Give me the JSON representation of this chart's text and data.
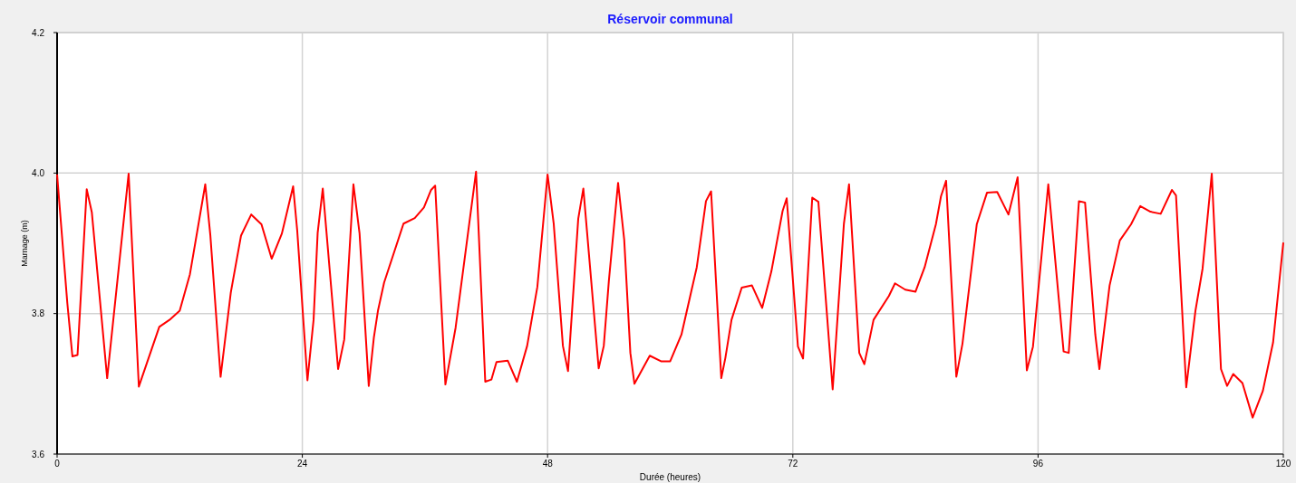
{
  "chart_data": {
    "type": "line",
    "title": "Réservoir communal",
    "xlabel": "Durée (heures)",
    "ylabel": "Marnage (m)",
    "xlim": [
      0,
      120
    ],
    "xticks": [
      0,
      24,
      48,
      72,
      96,
      120
    ],
    "ylim": [
      3.6,
      4.2
    ],
    "yticks": [
      {
        "value": 3.6,
        "label": "3.6"
      },
      {
        "value": 3.8,
        "label": "3.8"
      },
      {
        "value": 4.0,
        "label": "4.0"
      },
      {
        "value": 4.2,
        "label": "4.2"
      }
    ],
    "grid": true,
    "series": [
      {
        "color": "#ff0000",
        "x": [
          0,
          1.0,
          1.5,
          2.0,
          2.9,
          3.4,
          4.9,
          7.0,
          8.0,
          10.0,
          11.0,
          12.0,
          13.0,
          14.5,
          15.0,
          16.0,
          17.0,
          18.0,
          19.0,
          20.0,
          21.0,
          22.0,
          23.1,
          23.5,
          24.5,
          25.1,
          25.5,
          26.0,
          27.5,
          28.1,
          29.0,
          29.6,
          30.5,
          31.0,
          31.4,
          32.0,
          33.9,
          35.0,
          35.9,
          36.6,
          37.0,
          38.0,
          39.0,
          41.0,
          41.9,
          42.5,
          43.0,
          44.1,
          45.0,
          46.0,
          47.0,
          48.0,
          48.6,
          49.5,
          50.0,
          51.0,
          51.5,
          53.0,
          53.5,
          54.0,
          54.9,
          55.5,
          56.1,
          56.5,
          58.0,
          59.1,
          60.0,
          61.1,
          62.6,
          63.5,
          64.0,
          65.0,
          65.4,
          66.0,
          67.0,
          68.0,
          69.0,
          69.9,
          71.0,
          71.4,
          72.5,
          73.0,
          73.9,
          74.5,
          75.9,
          77.0,
          77.5,
          78.5,
          79.0,
          79.9,
          81.4,
          82.0,
          83.0,
          84.0,
          84.9,
          86.0,
          86.5,
          87.0,
          88.0,
          88.6,
          90.0,
          91.0,
          92.0,
          93.1,
          94.0,
          94.9,
          95.5,
          97.0,
          98.5,
          99.0,
          100.0,
          100.6,
          101.6,
          102.0,
          103.0,
          104.0,
          105.1,
          106.0,
          107.0,
          108.0,
          109.1,
          109.5,
          110.5,
          111.4,
          112.1,
          113.0,
          113.9,
          114.5,
          115.1,
          116.0,
          117.0,
          118.0,
          119.0,
          120.0
        ],
        "values": [
          3.998,
          3.815,
          3.739,
          3.741,
          3.977,
          3.944,
          3.708,
          3.999,
          3.696,
          3.781,
          3.791,
          3.804,
          3.856,
          3.984,
          3.911,
          3.71,
          3.83,
          3.911,
          3.941,
          3.927,
          3.878,
          3.914,
          3.981,
          3.918,
          3.705,
          3.791,
          3.915,
          3.978,
          3.721,
          3.763,
          3.984,
          3.914,
          3.697,
          3.766,
          3.804,
          3.844,
          3.928,
          3.936,
          3.951,
          3.976,
          3.982,
          3.699,
          3.78,
          4.002,
          3.703,
          3.706,
          3.731,
          3.733,
          3.703,
          3.754,
          3.838,
          3.998,
          3.928,
          3.754,
          3.718,
          3.935,
          3.978,
          3.722,
          3.754,
          3.847,
          3.986,
          3.905,
          3.744,
          3.7,
          3.74,
          3.732,
          3.732,
          3.77,
          3.866,
          3.96,
          3.974,
          3.708,
          3.737,
          3.791,
          3.837,
          3.84,
          3.808,
          3.86,
          3.946,
          3.964,
          3.753,
          3.736,
          3.965,
          3.959,
          3.692,
          3.928,
          3.984,
          3.744,
          3.728,
          3.791,
          3.825,
          3.843,
          3.834,
          3.831,
          3.866,
          3.927,
          3.967,
          3.989,
          3.71,
          3.757,
          3.927,
          3.972,
          3.973,
          3.941,
          3.994,
          3.719,
          3.753,
          3.984,
          3.746,
          3.744,
          3.96,
          3.958,
          3.77,
          3.721,
          3.84,
          3.904,
          3.927,
          3.953,
          3.945,
          3.942,
          3.976,
          3.968,
          3.695,
          3.804,
          3.864,
          3.999,
          3.721,
          3.697,
          3.714,
          3.701,
          3.652,
          3.69,
          3.759,
          3.901
        ]
      }
    ]
  }
}
